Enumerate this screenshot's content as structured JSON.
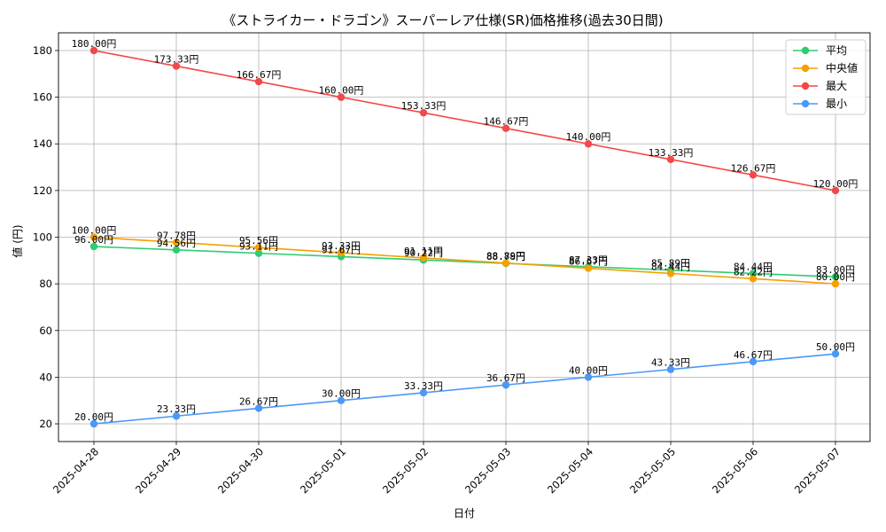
{
  "chart_data": {
    "type": "line",
    "title": "《ストライカー・ドラゴン》スーパーレア仕様(SR)価格推移(過去30日間)",
    "xlabel": "日付",
    "ylabel": "値 (円)",
    "x": [
      "2025-04-28",
      "2025-04-29",
      "2025-04-30",
      "2025-05-01",
      "2025-05-02",
      "2025-05-03",
      "2025-05-04",
      "2025-05-05",
      "2025-05-06",
      "2025-05-07"
    ],
    "ylim": [
      12.4,
      187.6
    ],
    "yticks": [
      20,
      40,
      60,
      80,
      100,
      120,
      140,
      160,
      180
    ],
    "grid": true,
    "legend_position": "top-right",
    "value_suffix": "円",
    "series": [
      {
        "name": "平均",
        "color": "#2ecc71",
        "values": [
          96.0,
          94.56,
          93.11,
          91.67,
          90.22,
          88.78,
          87.33,
          85.89,
          84.44,
          83.0
        ],
        "labels": [
          "96.00円",
          "94.56円",
          "93.11円",
          "91.67円",
          "90.22円",
          "88.78円",
          "87.33円",
          "85.89円",
          "84.44円",
          "83.00円"
        ]
      },
      {
        "name": "中央値",
        "color": "#f5a000",
        "values": [
          100.0,
          97.78,
          95.56,
          93.33,
          91.11,
          88.89,
          86.67,
          84.44,
          82.22,
          80.0
        ],
        "labels": [
          "100.00円",
          "97.78円",
          "95.56円",
          "93.33円",
          "91.11円",
          "88.89円",
          "86.67円",
          "84.44円",
          "82.22円",
          "80.00円"
        ]
      },
      {
        "name": "最大",
        "color": "#f44747",
        "values": [
          180.0,
          173.33,
          166.67,
          160.0,
          153.33,
          146.67,
          140.0,
          133.33,
          126.67,
          120.0
        ],
        "labels": [
          "180.00円",
          "173.33円",
          "166.67円",
          "160.00円",
          "153.33円",
          "146.67円",
          "140.00円",
          "133.33円",
          "126.67円",
          "120.00円"
        ]
      },
      {
        "name": "最小",
        "color": "#4a98f7",
        "values": [
          20.0,
          23.33,
          26.67,
          30.0,
          33.33,
          36.67,
          40.0,
          43.33,
          46.67,
          50.0
        ],
        "labels": [
          "20.00円",
          "23.33円",
          "26.67円",
          "30.00円",
          "33.33円",
          "36.67円",
          "40.00円",
          "43.33円",
          "46.67円",
          "50.00円"
        ]
      }
    ]
  }
}
